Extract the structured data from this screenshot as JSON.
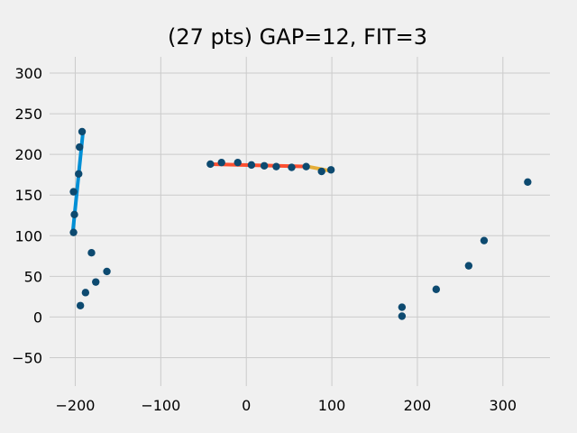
{
  "chart_data": {
    "type": "scatter",
    "title": "(27 pts) GAP=12, FIT=3",
    "xlabel": "",
    "ylabel": "",
    "xlim": [
      -230,
      355
    ],
    "ylim": [
      -85,
      320
    ],
    "xticks": [
      -200,
      -100,
      0,
      100,
      200,
      300
    ],
    "yticks": [
      -50,
      0,
      50,
      100,
      150,
      200,
      250,
      300
    ],
    "xtick_labels": [
      "−200",
      "−100",
      "0",
      "100",
      "200",
      "300"
    ],
    "ytick_labels": [
      "−50",
      "0",
      "50",
      "100",
      "150",
      "200",
      "250",
      "300"
    ],
    "grid": true,
    "background": "#f0f0f0",
    "grid_color": "#cbcbcb",
    "point_color": "#0d4a70",
    "points": [
      {
        "x": -202,
        "y": 104
      },
      {
        "x": -201,
        "y": 126
      },
      {
        "x": -202,
        "y": 154
      },
      {
        "x": -196,
        "y": 176
      },
      {
        "x": -195,
        "y": 209
      },
      {
        "x": -192,
        "y": 228
      },
      {
        "x": -194,
        "y": 14
      },
      {
        "x": -188,
        "y": 30
      },
      {
        "x": -181,
        "y": 79
      },
      {
        "x": -176,
        "y": 43
      },
      {
        "x": -163,
        "y": 56
      },
      {
        "x": -42,
        "y": 188
      },
      {
        "x": -29,
        "y": 190
      },
      {
        "x": -10,
        "y": 190
      },
      {
        "x": 6,
        "y": 187
      },
      {
        "x": 21,
        "y": 186
      },
      {
        "x": 35,
        "y": 185
      },
      {
        "x": 53,
        "y": 184
      },
      {
        "x": 70,
        "y": 185
      },
      {
        "x": 88,
        "y": 179
      },
      {
        "x": 99,
        "y": 181
      },
      {
        "x": 182,
        "y": 12
      },
      {
        "x": 182,
        "y": 1
      },
      {
        "x": 222,
        "y": 34
      },
      {
        "x": 260,
        "y": 63
      },
      {
        "x": 278,
        "y": 94
      },
      {
        "x": 329,
        "y": 166
      }
    ],
    "fit_lines": [
      {
        "color": "#008fd5",
        "x": [
          -203,
          -191
        ],
        "y": [
          103,
          227
        ]
      },
      {
        "color": "#fc4f30",
        "x": [
          -42,
          72
        ],
        "y": [
          188,
          185
        ]
      },
      {
        "color": "#e5ae38",
        "x": [
          72,
          97
        ],
        "y": [
          185,
          180
        ]
      }
    ]
  }
}
